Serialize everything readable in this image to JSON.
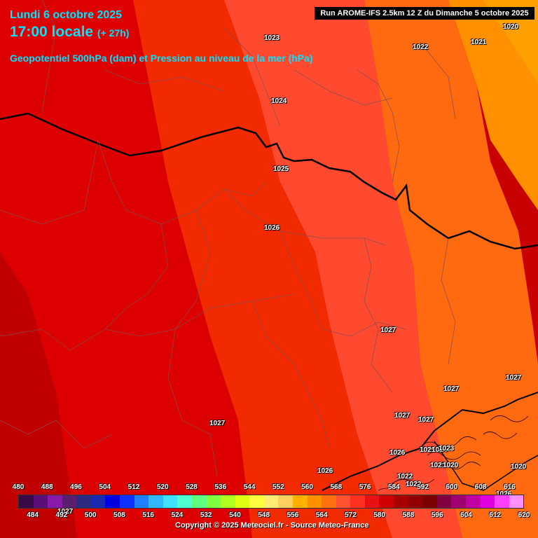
{
  "header": {
    "date_line": "Lundi 6 octobre 2025",
    "time_line": "17:00 locale",
    "lead_time": "(+ 27h)",
    "parameter": "Geopotentiel 500hPa (dam) et Pression au niveau de la mer (hPa)",
    "run_info": "Run AROME-IFS 2.5km 12 Z du Dimanche 5 octobre 2025"
  },
  "isobars": [
    {
      "name": "isobar-label-1020-ne",
      "text": "1020"
    },
    {
      "name": "isobar-label-1023",
      "text": "1023"
    },
    {
      "name": "isobar-label-1022-n",
      "text": "1022"
    },
    {
      "name": "isobar-label-1021",
      "text": "1021"
    },
    {
      "name": "isobar-label-1024",
      "text": "1024"
    },
    {
      "name": "isobar-label-1025-center",
      "text": "1025"
    },
    {
      "name": "isobar-label-1026-center",
      "text": "1026"
    },
    {
      "name": "isobar-label-1027-east",
      "text": "1027"
    },
    {
      "name": "isobar-label-1027-se1",
      "text": "1027"
    },
    {
      "name": "isobar-label-1027-se2",
      "text": "1027"
    },
    {
      "name": "isobar-label-1027-se3",
      "text": "1027"
    },
    {
      "name": "isobar-label-1027-se4",
      "text": "1027"
    },
    {
      "name": "isobar-label-1027-sw",
      "text": "1027"
    },
    {
      "name": "isobar-label-1026-south",
      "text": "1026"
    },
    {
      "name": "isobar-label-1026-alps",
      "text": "1026"
    },
    {
      "name": "isobar-label-1025-alps",
      "text": "1025"
    },
    {
      "name": "isobar-label-1024-alps",
      "text": "1024"
    },
    {
      "name": "isobar-label-1023-alps",
      "text": "1023"
    },
    {
      "name": "isobar-label-1021-alps",
      "text": "1021"
    },
    {
      "name": "isobar-label-1020-alps",
      "text": "1020"
    },
    {
      "name": "isobar-label-1020-se",
      "text": "1020"
    },
    {
      "name": "isobar-label-1022-alps",
      "text": "1022"
    },
    {
      "name": "isobar-label-1022-alps2",
      "text": "1022"
    },
    {
      "name": "isobar-label-1027-legend",
      "text": "1027"
    },
    {
      "name": "isobar-label-1026-legend",
      "text": "1026"
    }
  ],
  "legend": {
    "top_labels": [
      "480",
      "488",
      "496",
      "504",
      "512",
      "520",
      "528",
      "536",
      "544",
      "552",
      "560",
      "568",
      "576",
      "584",
      "592",
      "600",
      "608",
      "616"
    ],
    "bottom_labels": [
      "484",
      "492",
      "500",
      "508",
      "516",
      "524",
      "532",
      "540",
      "548",
      "556",
      "564",
      "572",
      "580",
      "588",
      "596",
      "604",
      "612",
      "620"
    ],
    "colors": [
      "#3a0a48",
      "#5a0f78",
      "#8a1aa8",
      "#5a1e6e",
      "#2a2a80",
      "#1a2ab0",
      "#0000e0",
      "#1030ff",
      "#2080ff",
      "#30b8ff",
      "#40e0ff",
      "#50ffd0",
      "#60ff80",
      "#80ff40",
      "#b0ff20",
      "#e0ff10",
      "#ffff40",
      "#ffec70",
      "#ffd060",
      "#ffb000",
      "#ff9000",
      "#ff7010",
      "#ff5030",
      "#ff3020",
      "#e81010",
      "#d00000",
      "#a80000",
      "#900000",
      "#7a0000",
      "#800040",
      "#a00070",
      "#c000a0",
      "#e000e0",
      "#ff40ff",
      "#ff90ff"
    ]
  },
  "copyright": "Copyright © 2025 Meteociel.fr - Source Meteo-France"
}
